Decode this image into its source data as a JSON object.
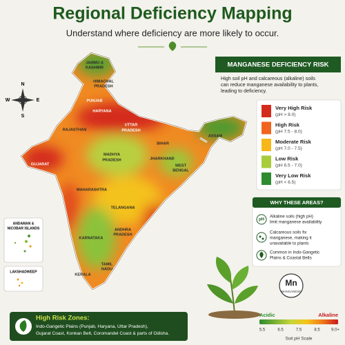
{
  "header": {
    "title": "Regional Deficiency Mapping",
    "subtitle": "Understand where deficiency are more likely to occur."
  },
  "compass": {
    "n": "N",
    "e": "E",
    "s": "S",
    "w": "W"
  },
  "map": {
    "regions": [
      "JAMMU &",
      "KASHMIR",
      "HIMACHAL",
      "PRADESH",
      "PUNJAB",
      "HARYANA",
      "UTTAR",
      "PRADESH",
      "RAJASTHAN",
      "BIHAR",
      "ASSAM",
      "GUJARAT",
      "MADHYA",
      "PRADESH",
      "JHARKHAND",
      "WEST",
      "BENGAL",
      "MAHARASHTRA",
      "TELANGANA",
      "ANDHRA",
      "PRADESH",
      "KARNATAKA",
      "TAMIL",
      "NADU",
      "KERALA"
    ],
    "insets": {
      "andaman": [
        "ANDAMAN &",
        "NICOBAR ISLANDS"
      ],
      "lakshadweep": "LAKSHADWEEP"
    }
  },
  "panel": {
    "title": "MANGANESE DEFICIENCY RISK",
    "description": [
      "High soil pH and calcareous (alkaline) soils",
      "can reduce manganese availability to plants,",
      "leading to deficiency."
    ],
    "legend": [
      {
        "label": "Very High Risk",
        "range": "(pH > 8.0)"
      },
      {
        "label": "High Risk",
        "range": "(pH 7.5 - 8.0)"
      },
      {
        "label": "Moderate Risk",
        "range": "(pH 7.0 - 7.5)"
      },
      {
        "label": "Low Risk",
        "range": "(pH 6.5 - 7.0)"
      },
      {
        "label": "Very Low Risk",
        "range": "(pH < 6.5)"
      }
    ]
  },
  "why": {
    "title": "WHY THESE AREAS?",
    "icon": "pH",
    "items": [
      [
        "Alkaline soils (high pH)",
        "limit manganese availability"
      ],
      [
        "Calcareous soils fix",
        "manganese, making it",
        "unavailable to plants"
      ],
      [
        "Common in Indo-Gangetic",
        "Plains & Coastal Belts"
      ]
    ]
  },
  "element": {
    "symbol": "Mn",
    "name": "MANGANESE"
  },
  "scale": {
    "left": "Acidic",
    "right": "Alkaline",
    "ticks": [
      "5.5",
      "6.5",
      "7.5",
      "8.5",
      "9.0+"
    ],
    "caption": "Soil pH Scale"
  },
  "zones": {
    "title": "High Risk Zones:",
    "lines": [
      "Indo-Gangetic Plains (Punjab, Haryana, Uttar Pradesh),",
      "Gujarat Coast, Konkan Belt, Coromandel Coast & parts of Odisha."
    ]
  }
}
